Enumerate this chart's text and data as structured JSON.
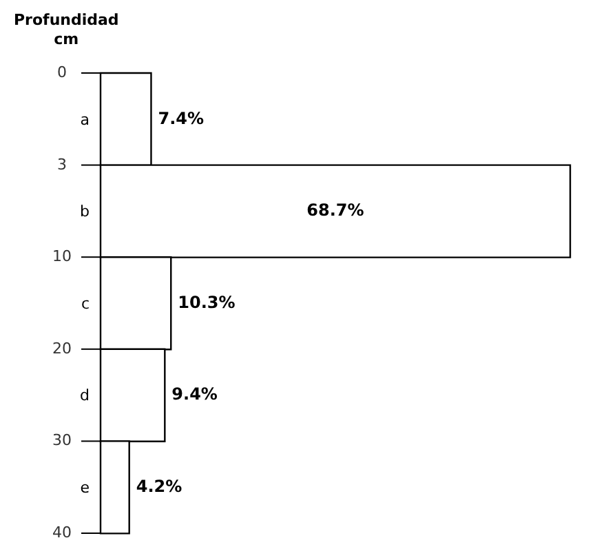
{
  "chart_data": {
    "type": "bar",
    "orientation": "horizontal",
    "ylabel": "Profundidad cm",
    "categories": [
      "a",
      "b",
      "c",
      "d",
      "e"
    ],
    "values": [
      7.4,
      68.7,
      10.3,
      9.4,
      4.2
    ],
    "value_labels": [
      "7.4%",
      "68.7%",
      "10.3%",
      "9.4%",
      "4.2%"
    ],
    "color": "#ffffff",
    "annotations": [
      "0",
      "3",
      "10",
      "20",
      "30",
      "40"
    ],
    "grid": false,
    "legend": false
  }
}
